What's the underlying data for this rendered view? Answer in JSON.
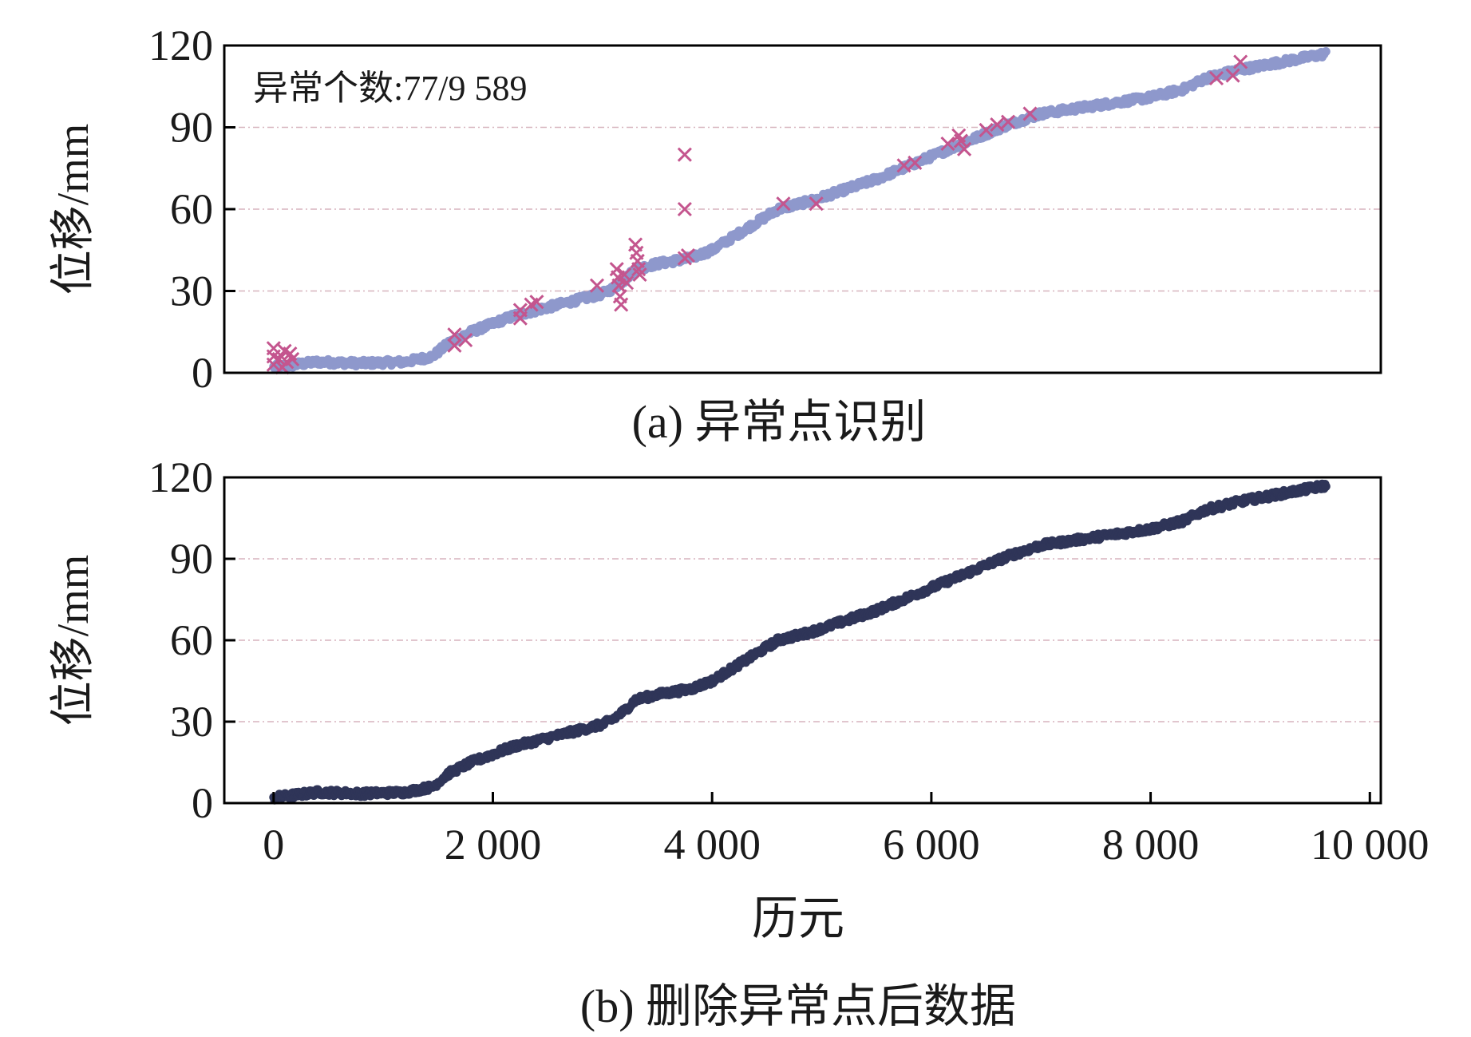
{
  "colors": {
    "raw_series": "#8e98cc",
    "anomaly_marker": "#c4558e",
    "clean_series": "#2f3558",
    "grid": "#d7b4be",
    "axis": "#000000"
  },
  "chart_data": [
    {
      "type": "scatter",
      "caption": "(a) 异常点识别",
      "annotation": "异常个数:77/9 589",
      "xlabel": "",
      "ylabel": "位移/mm",
      "xlim": [
        -450,
        10100
      ],
      "ylim": [
        0,
        120
      ],
      "yticks": [
        0,
        30,
        60,
        90,
        120
      ],
      "grid": "horizontal dashed",
      "series": [
        {
          "marker": "dot",
          "trend": [
            [
              0,
              2
            ],
            [
              200,
              3
            ],
            [
              400,
              4
            ],
            [
              800,
              3.5
            ],
            [
              1200,
              4
            ],
            [
              1450,
              6
            ],
            [
              1600,
              11
            ],
            [
              1800,
              15
            ],
            [
              2000,
              18
            ],
            [
              2200,
              21
            ],
            [
              2500,
              24
            ],
            [
              2800,
              27
            ],
            [
              3000,
              29
            ],
            [
              3100,
              31
            ],
            [
              3200,
              34
            ],
            [
              3300,
              38
            ],
            [
              3500,
              40
            ],
            [
              3800,
              42
            ],
            [
              4000,
              45
            ],
            [
              4200,
              50
            ],
            [
              4400,
              55
            ],
            [
              4600,
              60
            ],
            [
              4900,
              63
            ],
            [
              5200,
              67
            ],
            [
              5500,
              71
            ],
            [
              5800,
              76
            ],
            [
              6100,
              81
            ],
            [
              6400,
              86
            ],
            [
              6700,
              91
            ],
            [
              7000,
              95
            ],
            [
              7500,
              98
            ],
            [
              8000,
              101
            ],
            [
              8300,
              104
            ],
            [
              8500,
              108
            ],
            [
              8800,
              111
            ],
            [
              9200,
              114
            ],
            [
              9600,
              117
            ]
          ]
        },
        {
          "marker": "x",
          "points": [
            [
              0,
              9
            ],
            [
              0,
              6
            ],
            [
              0,
              3
            ],
            [
              50,
              5
            ],
            [
              80,
              2
            ],
            [
              100,
              8
            ],
            [
              120,
              4
            ],
            [
              150,
              7
            ],
            [
              170,
              5
            ],
            [
              1650,
              14
            ],
            [
              1650,
              10
            ],
            [
              1750,
              12
            ],
            [
              2250,
              23
            ],
            [
              2250,
              20
            ],
            [
              2350,
              25
            ],
            [
              2400,
              26
            ],
            [
              2950,
              32
            ],
            [
              3130,
              38
            ],
            [
              3140,
              35
            ],
            [
              3150,
              32
            ],
            [
              3160,
              28
            ],
            [
              3170,
              25
            ],
            [
              3200,
              36
            ],
            [
              3220,
              33
            ],
            [
              3300,
              47
            ],
            [
              3310,
              44
            ],
            [
              3320,
              41
            ],
            [
              3330,
              38
            ],
            [
              3340,
              36
            ],
            [
              3750,
              80
            ],
            [
              3750,
              60
            ],
            [
              3750,
              42
            ],
            [
              3780,
              43
            ],
            [
              4650,
              62
            ],
            [
              4950,
              62
            ],
            [
              5750,
              76
            ],
            [
              5850,
              77
            ],
            [
              6150,
              84
            ],
            [
              6250,
              87
            ],
            [
              6270,
              85
            ],
            [
              6300,
              82
            ],
            [
              6500,
              89
            ],
            [
              6600,
              91
            ],
            [
              6700,
              92
            ],
            [
              6900,
              95
            ],
            [
              8600,
              108
            ],
            [
              8750,
              109
            ],
            [
              8820,
              114
            ]
          ]
        }
      ]
    },
    {
      "type": "scatter",
      "caption": "(b) 删除异常点后数据",
      "xlabel": "历元",
      "ylabel": "位移/mm",
      "xlim": [
        -450,
        10100
      ],
      "ylim": [
        0,
        120
      ],
      "yticks": [
        0,
        30,
        60,
        90,
        120
      ],
      "xticks": [
        0,
        2000,
        4000,
        6000,
        8000,
        10000
      ],
      "xtick_labels": [
        "0",
        "2 000",
        "4 000",
        "6 000",
        "8 000",
        "10 000"
      ],
      "grid": "horizontal dashed",
      "series": [
        {
          "marker": "dot",
          "trend": [
            [
              0,
              2
            ],
            [
              200,
              3
            ],
            [
              400,
              4
            ],
            [
              800,
              3.5
            ],
            [
              1200,
              4
            ],
            [
              1450,
              6
            ],
            [
              1600,
              11
            ],
            [
              1800,
              15
            ],
            [
              2000,
              18
            ],
            [
              2200,
              21
            ],
            [
              2500,
              24
            ],
            [
              2800,
              27
            ],
            [
              3000,
              29
            ],
            [
              3100,
              31
            ],
            [
              3200,
              34
            ],
            [
              3300,
              38
            ],
            [
              3500,
              40
            ],
            [
              3800,
              42
            ],
            [
              4000,
              45
            ],
            [
              4200,
              50
            ],
            [
              4400,
              55
            ],
            [
              4600,
              60
            ],
            [
              4900,
              63
            ],
            [
              5200,
              67
            ],
            [
              5500,
              71
            ],
            [
              5800,
              76
            ],
            [
              6100,
              81
            ],
            [
              6400,
              86
            ],
            [
              6700,
              91
            ],
            [
              7000,
              95
            ],
            [
              7500,
              98
            ],
            [
              8000,
              101
            ],
            [
              8300,
              104
            ],
            [
              8500,
              108
            ],
            [
              8800,
              111
            ],
            [
              9200,
              114
            ],
            [
              9600,
              117
            ]
          ]
        }
      ]
    }
  ]
}
